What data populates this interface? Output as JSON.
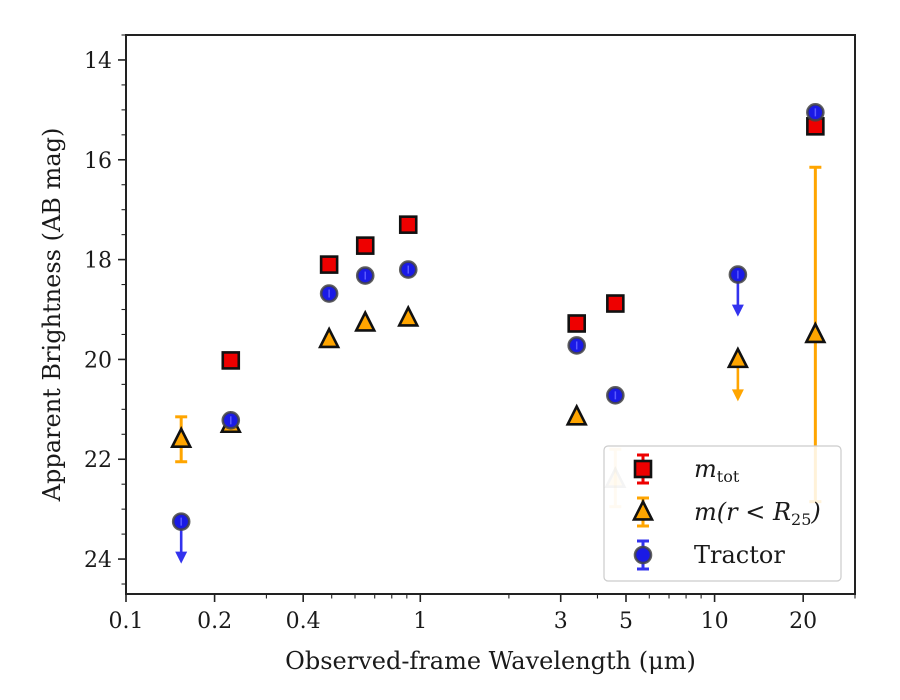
{
  "chart_data": {
    "type": "scatter",
    "title": "",
    "xlabel": "Observed-frame Wavelength (μm)",
    "ylabel": "Apparent Brightness (AB mag)",
    "xscale": "log",
    "xlim": [
      0.1,
      30
    ],
    "ylim": [
      24.7,
      13.5
    ],
    "y_inverted": true,
    "x_ticks": [
      0.1,
      0.2,
      0.4,
      1,
      3,
      5,
      10,
      20
    ],
    "x_tick_labels": [
      "0.1",
      "0.2",
      "0.4",
      "1",
      "3",
      "5",
      "10",
      "20"
    ],
    "y_ticks": [
      14,
      16,
      18,
      20,
      22,
      24
    ],
    "y_tick_labels": [
      "14",
      "16",
      "18",
      "20",
      "22",
      "24"
    ],
    "legend_position": "lower-right",
    "series": [
      {
        "key": "mtot",
        "name": "m_tot",
        "legend_base": "m",
        "legend_sub": "tot",
        "marker": "square",
        "color": "#ee0000",
        "errcolor": "#ee0000",
        "points": [
          {
            "x": 0.227,
            "y": 20.02
          },
          {
            "x": 0.49,
            "y": 18.1
          },
          {
            "x": 0.65,
            "y": 17.72
          },
          {
            "x": 0.91,
            "y": 17.3
          },
          {
            "x": 3.4,
            "y": 19.28
          },
          {
            "x": 4.6,
            "y": 18.88
          },
          {
            "x": 22,
            "y": 15.33
          }
        ]
      },
      {
        "key": "mr25",
        "name": "m(r < R25)",
        "legend_base": "m(r < R",
        "legend_sub": "25",
        "legend_tail": ")",
        "marker": "triangle",
        "color": "#ffa500",
        "errcolor": "#ffa500",
        "points": [
          {
            "x": 0.154,
            "y": 21.6,
            "yerr": [
              21.15,
              22.05
            ]
          },
          {
            "x": 0.227,
            "y": 21.3
          },
          {
            "x": 0.49,
            "y": 19.6
          },
          {
            "x": 0.65,
            "y": 19.27
          },
          {
            "x": 0.91,
            "y": 19.17
          },
          {
            "x": 3.4,
            "y": 21.15
          },
          {
            "x": 4.6,
            "y": 22.4,
            "yerr": [
              21.8,
              22.95
            ],
            "faded": true
          },
          {
            "x": 12,
            "y": 20.0,
            "upper_limit": true
          },
          {
            "x": 22,
            "y": 19.5,
            "yerr": [
              16.15,
              22.85
            ]
          }
        ]
      },
      {
        "key": "tractor",
        "name": "Tractor",
        "legend_base": "Tractor",
        "marker": "circle",
        "color": "#1a1ae6",
        "errcolor": "#3333ee",
        "points": [
          {
            "x": 0.154,
            "y": 23.25,
            "upper_limit": true
          },
          {
            "x": 0.227,
            "y": 21.22
          },
          {
            "x": 0.49,
            "y": 18.68
          },
          {
            "x": 0.65,
            "y": 18.32
          },
          {
            "x": 0.91,
            "y": 18.2
          },
          {
            "x": 3.4,
            "y": 19.72
          },
          {
            "x": 4.6,
            "y": 20.72
          },
          {
            "x": 12,
            "y": 18.3,
            "upper_limit": true
          },
          {
            "x": 22,
            "y": 15.05
          }
        ]
      }
    ]
  }
}
